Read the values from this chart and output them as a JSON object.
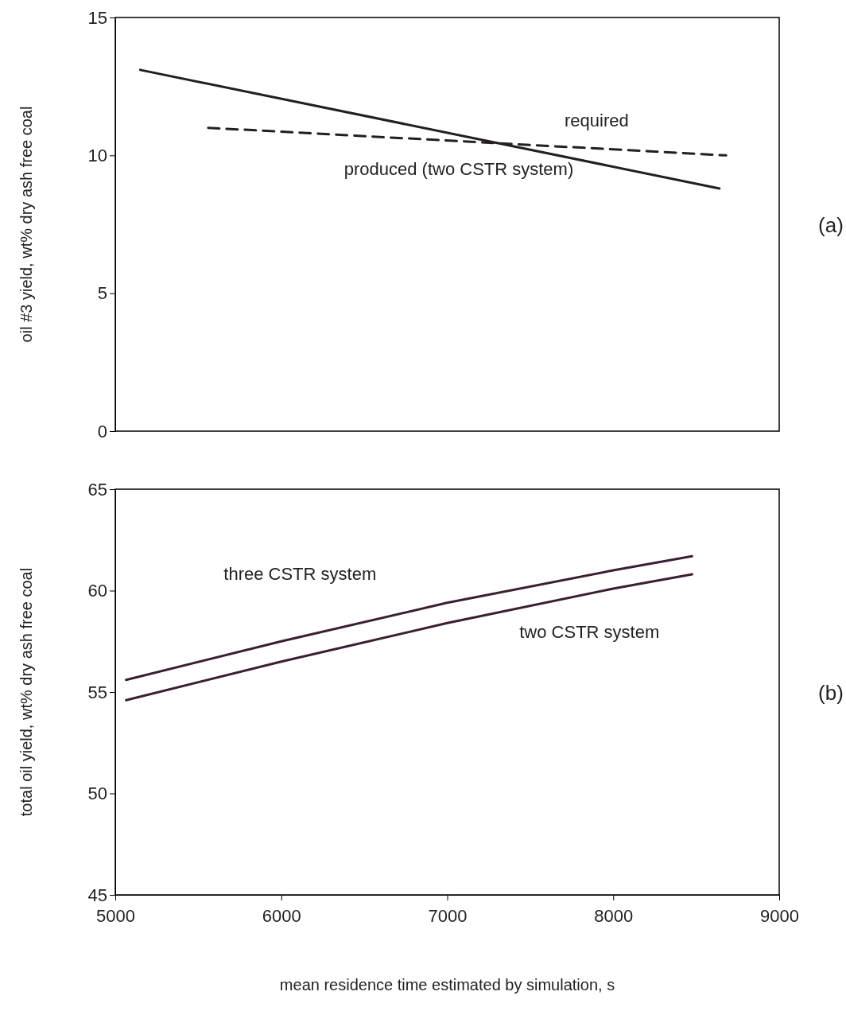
{
  "chart_data": [
    {
      "type": "line",
      "ylabel": "oil #3 yield, wt% dry ash free coal",
      "xlim": [
        5000,
        9000
      ],
      "ylim": [
        0,
        15
      ],
      "yticks": [
        0,
        5,
        10,
        15
      ],
      "tick_labels": "y",
      "marker": "none",
      "annotations": [
        "(a)"
      ],
      "series": [
        {
          "name": "produced (two CSTR system)",
          "color": "#231f20",
          "line_style": "solid",
          "x": [
            5150,
            8640
          ],
          "values": [
            13.1,
            8.8
          ]
        },
        {
          "name": "required",
          "color": "#231f20",
          "line_style": "dashed",
          "x": [
            5560,
            8680
          ],
          "values": [
            11.0,
            10.0
          ]
        }
      ]
    },
    {
      "type": "line",
      "xlabel": "mean residence time estimated by simulation, s",
      "ylabel": "total oil yield, wt% dry ash free coal",
      "xlim": [
        5000,
        9000
      ],
      "xticks": [
        5000,
        6000,
        7000,
        8000,
        9000
      ],
      "ylim": [
        45,
        65
      ],
      "yticks": [
        45,
        50,
        55,
        60,
        65
      ],
      "marker": "none",
      "annotations": [
        "(b)"
      ],
      "series": [
        {
          "name": "three CSTR system",
          "color": "#3a1f33",
          "line_style": "solid",
          "x": [
            5065,
            6000,
            7000,
            8000,
            8475
          ],
          "values": [
            55.6,
            57.5,
            59.4,
            61.0,
            61.7
          ]
        },
        {
          "name": "two CSTR system",
          "color": "#3a1f33",
          "line_style": "solid",
          "x": [
            5065,
            6000,
            7000,
            8000,
            8475
          ],
          "values": [
            54.6,
            56.5,
            58.4,
            60.1,
            60.8
          ]
        }
      ]
    }
  ]
}
